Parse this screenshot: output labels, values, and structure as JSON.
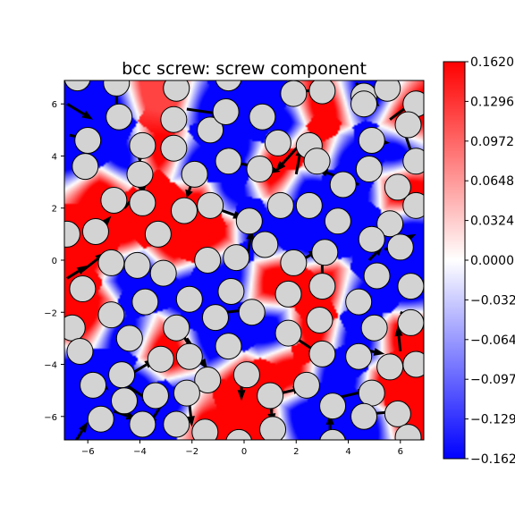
{
  "chart_data": {
    "type": "heatmap",
    "title": "bcc screw: screw component",
    "xlabel": "",
    "ylabel": "",
    "xlim": [
      -6.9,
      6.9
    ],
    "ylim": [
      -6.9,
      6.9
    ],
    "x_ticks": [
      "−6",
      "−4",
      "−2",
      "0",
      "2",
      "4",
      "6"
    ],
    "y_ticks": [
      "−6",
      "−4",
      "−2",
      "0",
      "2",
      "4",
      "6"
    ],
    "x_tick_values": [
      -6,
      -4,
      -2,
      0,
      2,
      4,
      6
    ],
    "y_tick_values": [
      -6,
      -4,
      -2,
      0,
      2,
      4,
      6
    ],
    "colormap": "bwr",
    "colors": {
      "low": "#0000ff",
      "mid": "#ffffff",
      "high": "#ff0000",
      "atom_fill": "#d3d3d3",
      "atom_edge": "#000000",
      "arrow": "#000000"
    },
    "colorbar": {
      "range": [
        -0.162,
        0.162
      ],
      "tick_labels": [
        "0.1620",
        "0.1296",
        "0.0972",
        "0.0648",
        "0.0324",
        "0.0000",
        "−0.0324",
        "−0.0648",
        "−0.0972",
        "−0.1296",
        "−0.1620"
      ],
      "tick_values": [
        0.162,
        0.1296,
        0.0972,
        0.0648,
        0.0324,
        0.0,
        -0.0324,
        -0.0648,
        -0.0972,
        -0.1296,
        -0.162
      ]
    },
    "field_samples": [
      {
        "x": -5.5,
        "y": 5.5,
        "v": -0.16
      },
      {
        "x": -3.0,
        "y": 6.3,
        "v": 0.12
      },
      {
        "x": -1.2,
        "y": 5.8,
        "v": -0.16
      },
      {
        "x": 0.3,
        "y": 6.5,
        "v": -0.16
      },
      {
        "x": 1.5,
        "y": 5.2,
        "v": -0.16
      },
      {
        "x": 3.0,
        "y": 5.8,
        "v": 0.16
      },
      {
        "x": 4.8,
        "y": 6.3,
        "v": -0.16
      },
      {
        "x": 6.3,
        "y": 5.5,
        "v": 0.16
      },
      {
        "x": -6.4,
        "y": 4.0,
        "v": -0.16
      },
      {
        "x": -4.7,
        "y": 4.0,
        "v": -0.16
      },
      {
        "x": -3.2,
        "y": 4.2,
        "v": 0.16
      },
      {
        "x": -1.8,
        "y": 3.7,
        "v": -0.16
      },
      {
        "x": -0.2,
        "y": 4.2,
        "v": -0.16
      },
      {
        "x": 1.2,
        "y": 3.6,
        "v": 0.16
      },
      {
        "x": 2.6,
        "y": 4.3,
        "v": 0.16
      },
      {
        "x": 4.0,
        "y": 3.8,
        "v": -0.16
      },
      {
        "x": 5.8,
        "y": 4.2,
        "v": -0.16
      },
      {
        "x": -5.5,
        "y": 2.6,
        "v": 0.16
      },
      {
        "x": -3.3,
        "y": 2.0,
        "v": 0.16
      },
      {
        "x": -1.8,
        "y": 2.3,
        "v": 0.16
      },
      {
        "x": -0.6,
        "y": 2.8,
        "v": -0.16
      },
      {
        "x": 2.6,
        "y": 2.7,
        "v": -0.16
      },
      {
        "x": 4.2,
        "y": 2.6,
        "v": -0.16
      },
      {
        "x": 6.2,
        "y": 2.7,
        "v": 0.16
      },
      {
        "x": -4.6,
        "y": 1.2,
        "v": 0.16
      },
      {
        "x": -2.8,
        "y": 0.7,
        "v": 0.16
      },
      {
        "x": -1.4,
        "y": 1.0,
        "v": 0.16
      },
      {
        "x": 0.8,
        "y": 1.0,
        "v": -0.16
      },
      {
        "x": 2.6,
        "y": 1.0,
        "v": -0.16
      },
      {
        "x": 4.8,
        "y": 0.8,
        "v": -0.16
      },
      {
        "x": 6.4,
        "y": 1.0,
        "v": -0.16
      },
      {
        "x": -6.2,
        "y": 0.4,
        "v": 0.16
      },
      {
        "x": -4.0,
        "y": -0.6,
        "v": -0.16
      },
      {
        "x": -2.1,
        "y": -1.3,
        "v": -0.16
      },
      {
        "x": -0.6,
        "y": -0.6,
        "v": -0.16
      },
      {
        "x": 1.2,
        "y": -0.8,
        "v": 0.16
      },
      {
        "x": 3.0,
        "y": -1.2,
        "v": 0.16
      },
      {
        "x": 4.6,
        "y": -1.6,
        "v": -0.16
      },
      {
        "x": 6.2,
        "y": -1.0,
        "v": -0.16
      },
      {
        "x": -6.1,
        "y": -2.1,
        "v": 0.16
      },
      {
        "x": -4.6,
        "y": -2.9,
        "v": -0.16
      },
      {
        "x": -3.1,
        "y": -3.5,
        "v": 0.16
      },
      {
        "x": -1.1,
        "y": -2.9,
        "v": -0.16
      },
      {
        "x": 1.0,
        "y": -2.7,
        "v": -0.16
      },
      {
        "x": 2.6,
        "y": -2.6,
        "v": 0.16
      },
      {
        "x": 4.4,
        "y": -3.0,
        "v": -0.16
      },
      {
        "x": 6.2,
        "y": -3.0,
        "v": 0.16
      },
      {
        "x": -6.2,
        "y": -4.6,
        "v": -0.16
      },
      {
        "x": -4.1,
        "y": -4.8,
        "v": -0.16
      },
      {
        "x": -2.6,
        "y": -5.6,
        "v": -0.16
      },
      {
        "x": 0.2,
        "y": -4.8,
        "v": 0.16
      },
      {
        "x": 1.6,
        "y": -4.3,
        "v": 0.16
      },
      {
        "x": 3.6,
        "y": -4.6,
        "v": -0.16
      },
      {
        "x": 5.8,
        "y": -4.9,
        "v": 0.16
      },
      {
        "x": -5.5,
        "y": -6.2,
        "v": -0.16
      },
      {
        "x": -3.8,
        "y": -6.6,
        "v": -0.16
      },
      {
        "x": -1.6,
        "y": -6.1,
        "v": 0.16
      },
      {
        "x": 0.4,
        "y": -6.3,
        "v": 0.16
      },
      {
        "x": 2.4,
        "y": -6.0,
        "v": -0.16
      },
      {
        "x": 4.6,
        "y": -6.4,
        "v": -0.16
      },
      {
        "x": 6.5,
        "y": -6.0,
        "v": 0.16
      }
    ],
    "atoms": [
      {
        "x": -6.4,
        "y": 7.0
      },
      {
        "x": -4.9,
        "y": 6.8
      },
      {
        "x": -2.6,
        "y": 6.6
      },
      {
        "x": -0.6,
        "y": 7.0
      },
      {
        "x": 1.9,
        "y": 6.4
      },
      {
        "x": 3.0,
        "y": 6.5
      },
      {
        "x": 4.6,
        "y": 6.3
      },
      {
        "x": 5.5,
        "y": 6.6
      },
      {
        "x": 6.6,
        "y": 6.0
      },
      {
        "x": -6.0,
        "y": 4.6
      },
      {
        "x": -4.8,
        "y": 5.5
      },
      {
        "x": -2.7,
        "y": 5.4
      },
      {
        "x": -1.3,
        "y": 5.0
      },
      {
        "x": -0.7,
        "y": 5.7
      },
      {
        "x": 0.7,
        "y": 5.5
      },
      {
        "x": 4.6,
        "y": 6.0
      },
      {
        "x": 6.3,
        "y": 5.2
      },
      {
        "x": -6.1,
        "y": 3.6
      },
      {
        "x": -3.9,
        "y": 4.4
      },
      {
        "x": -2.7,
        "y": 4.3
      },
      {
        "x": -0.6,
        "y": 3.8
      },
      {
        "x": 1.3,
        "y": 4.5
      },
      {
        "x": 2.5,
        "y": 4.4
      },
      {
        "x": 2.8,
        "y": 3.8
      },
      {
        "x": 4.9,
        "y": 4.6
      },
      {
        "x": 6.6,
        "y": 3.8
      },
      {
        "x": -4.0,
        "y": 3.3
      },
      {
        "x": -1.9,
        "y": 3.3
      },
      {
        "x": 0.6,
        "y": 3.5
      },
      {
        "x": 3.8,
        "y": 2.9
      },
      {
        "x": 4.8,
        "y": 3.5
      },
      {
        "x": 5.9,
        "y": 2.8
      },
      {
        "x": -5.0,
        "y": 2.3
      },
      {
        "x": -3.9,
        "y": 2.2
      },
      {
        "x": -2.3,
        "y": 1.9
      },
      {
        "x": -1.3,
        "y": 2.1
      },
      {
        "x": 0.2,
        "y": 1.5
      },
      {
        "x": 1.4,
        "y": 2.1
      },
      {
        "x": 2.5,
        "y": 2.1
      },
      {
        "x": 3.6,
        "y": 1.5
      },
      {
        "x": 5.6,
        "y": 1.4
      },
      {
        "x": 6.6,
        "y": 2.1
      },
      {
        "x": -6.8,
        "y": 1.0
      },
      {
        "x": -5.7,
        "y": 1.1
      },
      {
        "x": -3.3,
        "y": 1.0
      },
      {
        "x": 0.8,
        "y": 0.6
      },
      {
        "x": 3.1,
        "y": 0.3
      },
      {
        "x": 4.9,
        "y": 0.8
      },
      {
        "x": 6.0,
        "y": 0.5
      },
      {
        "x": -5.1,
        "y": -0.1
      },
      {
        "x": -4.1,
        "y": -0.2
      },
      {
        "x": -3.1,
        "y": -0.5
      },
      {
        "x": -1.4,
        "y": 0.0
      },
      {
        "x": -0.3,
        "y": 0.1
      },
      {
        "x": 1.9,
        "y": -0.1
      },
      {
        "x": 5.1,
        "y": -0.6
      },
      {
        "x": -6.2,
        "y": -1.1
      },
      {
        "x": -2.1,
        "y": -1.5
      },
      {
        "x": -0.5,
        "y": -1.2
      },
      {
        "x": 1.7,
        "y": -1.3
      },
      {
        "x": 3.0,
        "y": -1.0
      },
      {
        "x": 4.4,
        "y": -1.6
      },
      {
        "x": 6.4,
        "y": -1.0
      },
      {
        "x": -5.1,
        "y": -2.1
      },
      {
        "x": -3.8,
        "y": -1.6
      },
      {
        "x": -2.6,
        "y": -2.6
      },
      {
        "x": -1.1,
        "y": -2.2
      },
      {
        "x": 0.3,
        "y": -2.0
      },
      {
        "x": 1.7,
        "y": -2.8
      },
      {
        "x": 2.9,
        "y": -2.3
      },
      {
        "x": 5.0,
        "y": -2.6
      },
      {
        "x": 6.4,
        "y": -2.4
      },
      {
        "x": -6.6,
        "y": -2.6
      },
      {
        "x": -4.4,
        "y": -3.0
      },
      {
        "x": -2.1,
        "y": -3.7
      },
      {
        "x": -0.6,
        "y": -3.3
      },
      {
        "x": 3.0,
        "y": -3.6
      },
      {
        "x": 4.4,
        "y": -3.7
      },
      {
        "x": 5.6,
        "y": -4.1
      },
      {
        "x": 6.6,
        "y": -4.0
      },
      {
        "x": -6.3,
        "y": -3.5
      },
      {
        "x": -4.7,
        "y": -4.4
      },
      {
        "x": -3.2,
        "y": -3.8
      },
      {
        "x": -1.4,
        "y": -4.6
      },
      {
        "x": 0.1,
        "y": -4.4
      },
      {
        "x": 2.4,
        "y": -4.8
      },
      {
        "x": 4.9,
        "y": -5.1
      },
      {
        "x": -5.8,
        "y": -4.8
      },
      {
        "x": -4.6,
        "y": -5.4
      },
      {
        "x": -3.4,
        "y": -5.2
      },
      {
        "x": -2.2,
        "y": -5.1
      },
      {
        "x": 1.0,
        "y": -5.2
      },
      {
        "x": 3.4,
        "y": -5.6
      },
      {
        "x": 4.6,
        "y": -6.0
      },
      {
        "x": 5.9,
        "y": -5.9
      },
      {
        "x": -5.5,
        "y": -6.1
      },
      {
        "x": -3.9,
        "y": -6.3
      },
      {
        "x": -2.6,
        "y": -6.3
      },
      {
        "x": -1.5,
        "y": -6.6
      },
      {
        "x": -0.2,
        "y": -7.0
      },
      {
        "x": 1.1,
        "y": -6.5
      },
      {
        "x": 3.4,
        "y": -7.0
      },
      {
        "x": 6.3,
        "y": -6.8
      }
    ],
    "arrows": [
      {
        "x0": -6.8,
        "y0": 6.0,
        "x1": -5.8,
        "y1": 5.4
      },
      {
        "x0": -4.9,
        "y0": 6.0,
        "x1": -4.9,
        "y1": 6.7
      },
      {
        "x0": -2.2,
        "y0": 5.8,
        "x1": -0.8,
        "y1": 5.6
      },
      {
        "x0": 2.3,
        "y0": 6.5,
        "x1": 3.4,
        "y1": 6.5
      },
      {
        "x0": 4.3,
        "y0": 6.8,
        "x1": 5.2,
        "y1": 5.9
      },
      {
        "x0": 5.6,
        "y0": 5.4,
        "x1": 6.8,
        "y1": 6.3
      },
      {
        "x0": -6.7,
        "y0": 4.8,
        "x1": -5.7,
        "y1": 4.6
      },
      {
        "x0": -4.0,
        "y0": 4.9,
        "x1": -4.0,
        "y1": 3.7
      },
      {
        "x0": -2.8,
        "y0": 4.8,
        "x1": -2.6,
        "y1": 3.9
      },
      {
        "x0": -0.1,
        "y0": 3.7,
        "x1": 1.4,
        "y1": 3.4
      },
      {
        "x0": 2.2,
        "y0": 4.5,
        "x1": 1.2,
        "y1": 3.4
      },
      {
        "x0": 2.0,
        "y0": 3.3,
        "x1": 2.2,
        "y1": 4.4
      },
      {
        "x0": 4.4,
        "y0": 2.9,
        "x1": 2.8,
        "y1": 3.5
      },
      {
        "x0": 4.5,
        "y0": 4.6,
        "x1": 5.6,
        "y1": 4.5
      },
      {
        "x0": 6.2,
        "y0": 4.8,
        "x1": 6.6,
        "y1": 3.6
      },
      {
        "x0": -4.6,
        "y0": 2.0,
        "x1": -3.7,
        "y1": 3.0
      },
      {
        "x0": -2.0,
        "y0": 3.0,
        "x1": -2.2,
        "y1": 2.4
      },
      {
        "x0": -1.1,
        "y0": 2.0,
        "x1": 0.0,
        "y1": 1.6
      },
      {
        "x0": -5.9,
        "y0": 0.8,
        "x1": -5.1,
        "y1": 1.7
      },
      {
        "x0": -6.8,
        "y0": -0.7,
        "x1": -6.0,
        "y1": -0.2
      },
      {
        "x0": -6.2,
        "y0": -0.4,
        "x1": -5.3,
        "y1": 0.3
      },
      {
        "x0": 0.1,
        "y0": 0.0,
        "x1": 0.3,
        "y1": 1.2
      },
      {
        "x0": 1.5,
        "y0": -0.4,
        "x1": 2.9,
        "y1": 0.4
      },
      {
        "x0": 3.0,
        "y0": -0.2,
        "x1": 3.0,
        "y1": -1.5
      },
      {
        "x0": 4.8,
        "y0": 0.0,
        "x1": 5.3,
        "y1": 0.5
      },
      {
        "x0": 5.4,
        "y0": 0.4,
        "x1": 6.6,
        "y1": 1.0
      },
      {
        "x0": -1.6,
        "y0": -2.1,
        "x1": 0.2,
        "y1": -1.9
      },
      {
        "x0": -2.4,
        "y0": -2.8,
        "x1": -1.7,
        "y1": -3.9
      },
      {
        "x0": -2.2,
        "y0": -3.0,
        "x1": -1.4,
        "y1": -4.2
      },
      {
        "x0": 2.0,
        "y0": -3.0,
        "x1": 2.9,
        "y1": -3.6
      },
      {
        "x0": 4.4,
        "y0": -3.4,
        "x1": 5.4,
        "y1": -3.6
      },
      {
        "x0": 6.0,
        "y0": -2.0,
        "x1": 6.8,
        "y1": -2.4
      },
      {
        "x0": 6.0,
        "y0": -3.5,
        "x1": 5.9,
        "y1": -2.5
      },
      {
        "x0": -5.9,
        "y0": -4.3,
        "x1": -5.2,
        "y1": -5.0
      },
      {
        "x0": -4.5,
        "y0": -4.8,
        "x1": -3.5,
        "y1": -5.5
      },
      {
        "x0": -4.4,
        "y0": -4.4,
        "x1": -3.4,
        "y1": -3.8
      },
      {
        "x0": -0.1,
        "y0": -4.0,
        "x1": -0.1,
        "y1": -5.4
      },
      {
        "x0": 1.0,
        "y0": -5.2,
        "x1": 2.3,
        "y1": -4.9
      },
      {
        "x0": 1.0,
        "y0": -5.3,
        "x1": 1.1,
        "y1": -6.3
      },
      {
        "x0": 3.3,
        "y0": -7.1,
        "x1": 3.3,
        "y1": -5.9
      },
      {
        "x0": 3.5,
        "y0": -5.3,
        "x1": 4.8,
        "y1": -5.0
      },
      {
        "x0": 4.8,
        "y0": -5.9,
        "x1": 6.0,
        "y1": -5.8
      },
      {
        "x0": -5.0,
        "y0": -5.8,
        "x1": -4.1,
        "y1": -6.1
      },
      {
        "x0": -3.2,
        "y0": -5.6,
        "x1": -3.7,
        "y1": -6.4
      },
      {
        "x0": -2.1,
        "y0": -5.5,
        "x1": -2.0,
        "y1": -6.4
      },
      {
        "x0": -6.5,
        "y0": -7.0,
        "x1": -6.0,
        "y1": -6.2
      }
    ]
  }
}
